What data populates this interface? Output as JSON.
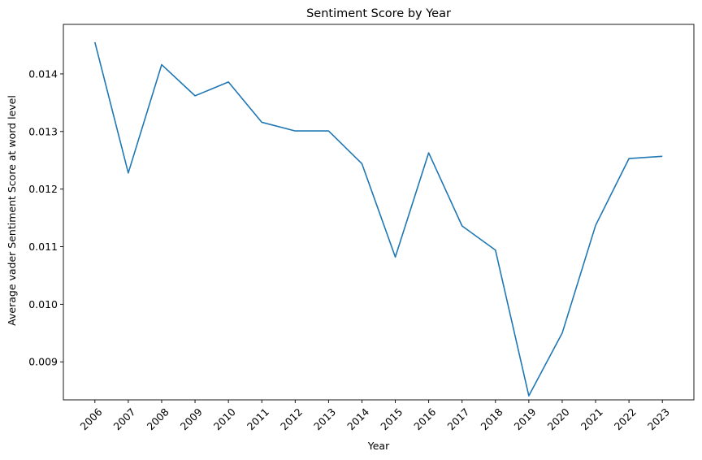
{
  "chart_data": {
    "type": "line",
    "title": "Sentiment Score by Year",
    "xlabel": "Year",
    "ylabel": "Average vader Sentiment Score at word level",
    "categories": [
      "2006",
      "2007",
      "2008",
      "2009",
      "2010",
      "2011",
      "2012",
      "2013",
      "2014",
      "2015",
      "2016",
      "2017",
      "2018",
      "2019",
      "2020",
      "2021",
      "2022",
      "2023"
    ],
    "series": [
      {
        "values": [
          0.01455,
          0.01228,
          0.01416,
          0.01362,
          0.01386,
          0.01316,
          0.01301,
          0.01301,
          0.01244,
          0.01082,
          0.01263,
          0.01136,
          0.01094,
          0.00841,
          0.0095,
          0.01137,
          0.01253,
          0.01257
        ],
        "color": "#1f77b4"
      }
    ],
    "yticks": [
      0.009,
      0.01,
      0.011,
      0.012,
      0.013,
      0.014
    ],
    "ytick_labels": [
      "0.009",
      "0.010",
      "0.011",
      "0.012",
      "0.013",
      "0.014"
    ],
    "ylim": [
      0.00834,
      0.01486
    ],
    "grid": false,
    "legend": "none"
  }
}
